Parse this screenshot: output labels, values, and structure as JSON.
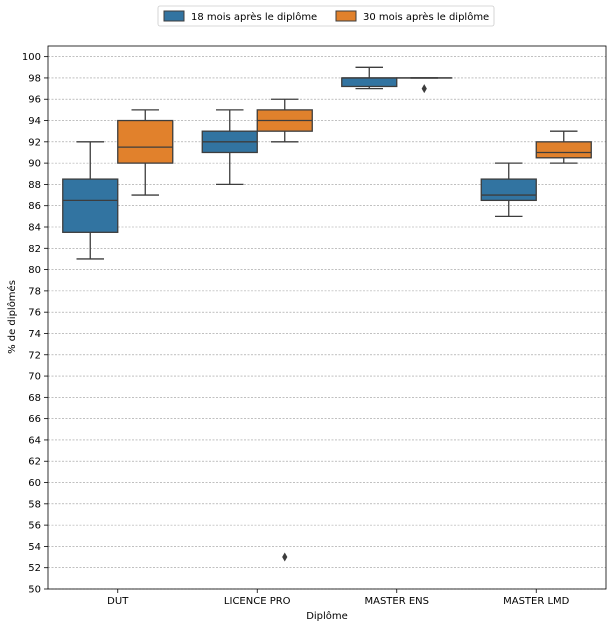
{
  "chart_data": {
    "type": "box",
    "xlabel": "Diplôme",
    "ylabel": "% de diplômés",
    "ylim": [
      50,
      101
    ],
    "yticks": [
      50,
      52,
      54,
      56,
      58,
      60,
      62,
      64,
      66,
      68,
      70,
      72,
      74,
      76,
      78,
      80,
      82,
      84,
      86,
      88,
      90,
      92,
      94,
      96,
      98,
      100
    ],
    "grid": "horizontal dashed",
    "legend_position": "top-center",
    "categories": [
      "DUT",
      "LICENCE PRO",
      "MASTER ENS",
      "MASTER LMD"
    ],
    "series": [
      {
        "name": "18 mois après le diplôme",
        "color": "#3274a1",
        "boxes": [
          {
            "min": 81,
            "q1": 83.5,
            "median": 86.5,
            "q3": 88.5,
            "max": 92,
            "outliers": []
          },
          {
            "min": 88,
            "q1": 91,
            "median": 92,
            "q3": 93,
            "max": 95,
            "outliers": []
          },
          {
            "min": 97,
            "q1": 97.2,
            "median": 98,
            "q3": 98,
            "max": 99,
            "outliers": []
          },
          {
            "min": 85,
            "q1": 86.5,
            "median": 87,
            "q3": 88.5,
            "max": 90,
            "outliers": []
          }
        ]
      },
      {
        "name": "30 mois après le diplôme",
        "color": "#e1812c",
        "boxes": [
          {
            "min": 87,
            "q1": 90,
            "median": 91.5,
            "q3": 94,
            "max": 95,
            "outliers": []
          },
          {
            "min": 92,
            "q1": 93,
            "median": 94,
            "q3": 95,
            "max": 96,
            "outliers": [
              53
            ]
          },
          {
            "min": 98,
            "q1": 98,
            "median": 98,
            "q3": 98,
            "max": 98,
            "outliers": [
              97
            ]
          },
          {
            "min": 90,
            "q1": 90.5,
            "median": 91,
            "q3": 92,
            "max": 93,
            "outliers": []
          }
        ]
      }
    ]
  }
}
